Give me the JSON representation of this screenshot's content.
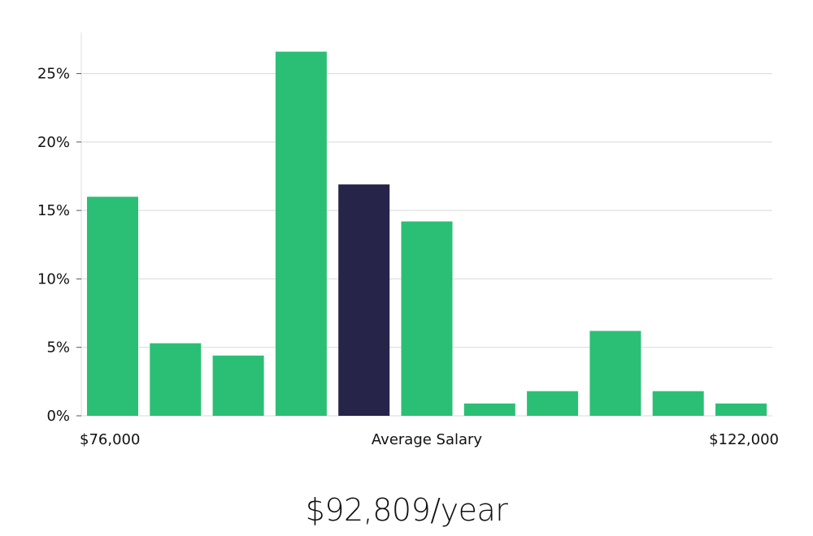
{
  "colors": {
    "bar": "#2bbf76",
    "highlight": "#27244a",
    "grid": "#d9d9d9",
    "axis": "#dddddd",
    "text": "#111111"
  },
  "headline": "$92,809/year",
  "chart_data": {
    "type": "bar",
    "values": [
      16,
      5.3,
      4.4,
      26.6,
      16.9,
      14.2,
      0.9,
      1.8,
      6.2,
      1.8,
      0.9
    ],
    "highlight_index": 4,
    "ylim": [
      0,
      28
    ],
    "yticks": [
      0,
      5,
      10,
      15,
      20,
      25
    ],
    "ytick_format": "%",
    "x_labels": {
      "left": "$76,000",
      "center": "Average Salary",
      "right": "$122,000"
    },
    "grid": true
  }
}
